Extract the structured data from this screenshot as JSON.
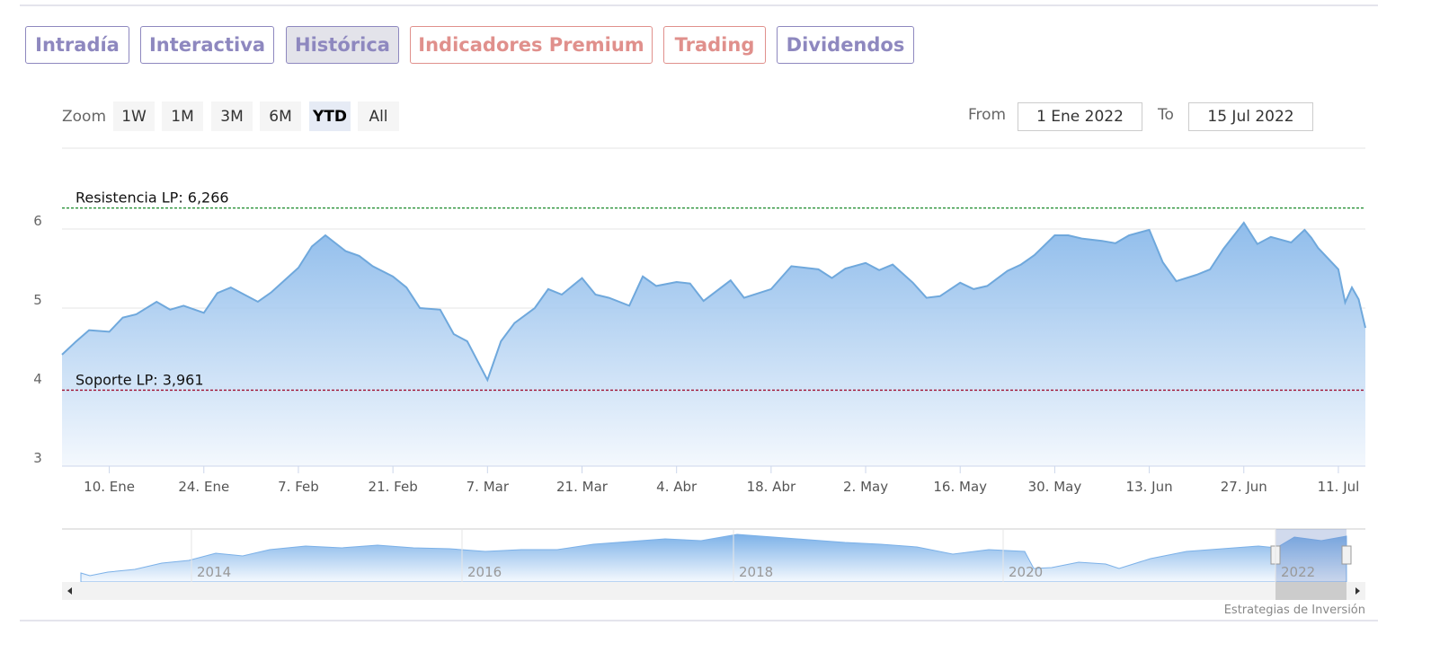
{
  "tabs": [
    "Intradía",
    "Interactiva",
    "Histórica",
    "Indicadores Premium",
    "Trading",
    "Dividendos"
  ],
  "zoom": {
    "label": "Zoom",
    "buttons": [
      "1W",
      "1M",
      "3M",
      "6M",
      "YTD",
      "All"
    ]
  },
  "range": {
    "from_label": "From",
    "from": "1 Ene 2022",
    "to_label": "To",
    "to": "15 Jul 2022"
  },
  "chart_data": {
    "type": "area",
    "color": "#6fa8dc",
    "x": [
      "2022-01-03",
      "2022-01-05",
      "2022-01-07",
      "2022-01-10",
      "2022-01-12",
      "2022-01-14",
      "2022-01-17",
      "2022-01-19",
      "2022-01-21",
      "2022-01-24",
      "2022-01-26",
      "2022-01-28",
      "2022-02-01",
      "2022-02-03",
      "2022-02-07",
      "2022-02-09",
      "2022-02-11",
      "2022-02-14",
      "2022-02-16",
      "2022-02-18",
      "2022-02-21",
      "2022-02-23",
      "2022-02-25",
      "2022-02-28",
      "2022-03-02",
      "2022-03-04",
      "2022-03-07",
      "2022-03-09",
      "2022-03-11",
      "2022-03-14",
      "2022-03-16",
      "2022-03-18",
      "2022-03-21",
      "2022-03-23",
      "2022-03-25",
      "2022-03-28",
      "2022-03-30",
      "2022-04-01",
      "2022-04-04",
      "2022-04-06",
      "2022-04-08",
      "2022-04-12",
      "2022-04-14",
      "2022-04-18",
      "2022-04-21",
      "2022-04-25",
      "2022-04-27",
      "2022-04-29",
      "2022-05-02",
      "2022-05-04",
      "2022-05-06",
      "2022-05-09",
      "2022-05-11",
      "2022-05-13",
      "2022-05-16",
      "2022-05-18",
      "2022-05-20",
      "2022-05-23",
      "2022-05-25",
      "2022-05-27",
      "2022-05-30",
      "2022-06-01",
      "2022-06-03",
      "2022-06-06",
      "2022-06-08",
      "2022-06-10",
      "2022-06-13",
      "2022-06-15",
      "2022-06-17",
      "2022-06-20",
      "2022-06-22",
      "2022-06-24",
      "2022-06-27",
      "2022-06-29",
      "2022-07-01",
      "2022-07-04",
      "2022-07-06",
      "2022-07-07",
      "2022-07-08",
      "2022-07-11",
      "2022-07-12",
      "2022-07-13",
      "2022-07-14",
      "2022-07-15"
    ],
    "values": [
      4.41,
      4.57,
      4.72,
      4.7,
      4.88,
      4.92,
      5.08,
      4.98,
      5.03,
      4.94,
      5.19,
      5.26,
      5.08,
      5.2,
      5.51,
      5.78,
      5.92,
      5.72,
      5.66,
      5.53,
      5.4,
      5.26,
      5.0,
      4.98,
      4.67,
      4.58,
      4.09,
      4.58,
      4.81,
      5.0,
      5.24,
      5.17,
      5.38,
      5.17,
      5.13,
      5.03,
      5.4,
      5.28,
      5.33,
      5.31,
      5.09,
      5.35,
      5.13,
      5.24,
      5.53,
      5.49,
      5.38,
      5.5,
      5.57,
      5.48,
      5.55,
      5.32,
      5.13,
      5.15,
      5.32,
      5.24,
      5.28,
      5.47,
      5.55,
      5.67,
      5.92,
      5.92,
      5.88,
      5.85,
      5.82,
      5.92,
      5.99,
      5.58,
      5.34,
      5.42,
      5.49,
      5.75,
      6.08,
      5.81,
      5.9,
      5.83,
      5.99,
      5.89,
      5.76,
      5.49,
      5.07,
      5.26,
      5.11,
      4.75
    ],
    "xlim": [
      "2022-01-03",
      "2022-07-15"
    ],
    "xticks": [
      {
        "value": "2022-01-10",
        "label": "10. Ene"
      },
      {
        "value": "2022-01-24",
        "label": "24. Ene"
      },
      {
        "value": "2022-02-07",
        "label": "7. Feb"
      },
      {
        "value": "2022-02-21",
        "label": "21. Feb"
      },
      {
        "value": "2022-03-07",
        "label": "7. Mar"
      },
      {
        "value": "2022-03-21",
        "label": "21. Mar"
      },
      {
        "value": "2022-04-04",
        "label": "4. Abr"
      },
      {
        "value": "2022-04-18",
        "label": "18. Abr"
      },
      {
        "value": "2022-05-02",
        "label": "2. May"
      },
      {
        "value": "2022-05-16",
        "label": "16. May"
      },
      {
        "value": "2022-05-30",
        "label": "30. May"
      },
      {
        "value": "2022-06-13",
        "label": "13. Jun"
      },
      {
        "value": "2022-06-27",
        "label": "27. Jun"
      },
      {
        "value": "2022-07-11",
        "label": "11. Jul"
      }
    ],
    "ylim": [
      3,
      7
    ],
    "yticks": [
      3,
      4,
      5,
      6
    ],
    "grid": true,
    "plot_lines": [
      {
        "value": 6.266,
        "label": "Resistencia LP: 6,266",
        "color": "#1a8a2a"
      },
      {
        "value": 3.961,
        "label": "Soporte LP: 3,961",
        "color": "#a01030"
      }
    ]
  },
  "navigator": {
    "labels": [
      "2014",
      "2016",
      "2018",
      "2020",
      "2022"
    ]
  },
  "credits": "Estrategias de Inversión"
}
